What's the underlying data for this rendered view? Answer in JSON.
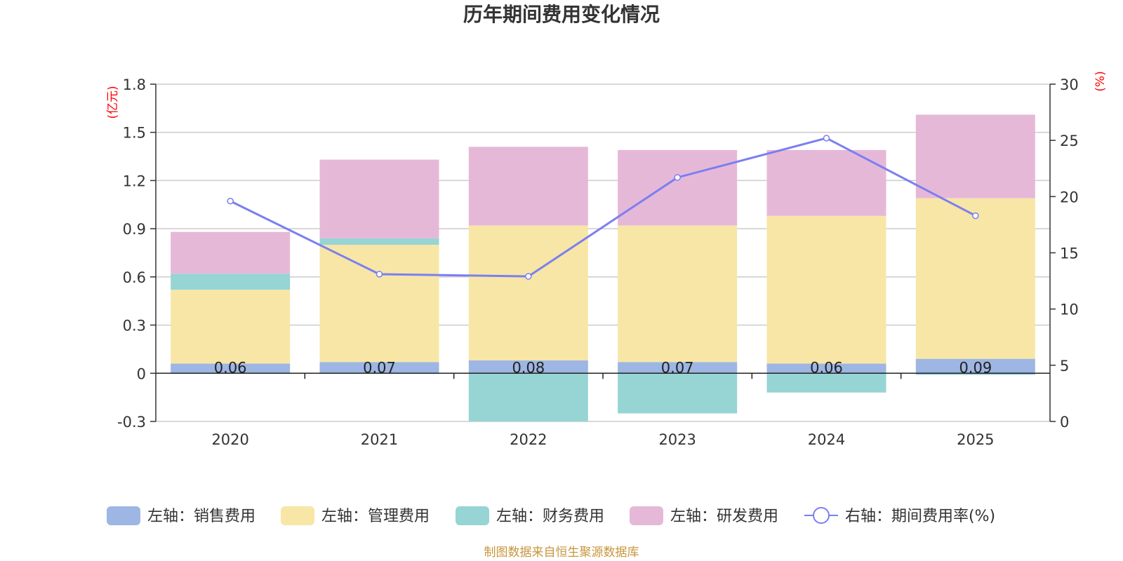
{
  "chart_data": {
    "type": "bar",
    "title": "历年期间费用变化情况",
    "categories": [
      "2020",
      "2021",
      "2022",
      "2023",
      "2024",
      "2025"
    ],
    "left_axis": {
      "unit_label": "(亿元)",
      "ylim": [
        -0.3,
        1.8
      ],
      "ticks": [
        "1.8",
        "1.5",
        "1.2",
        "0.9",
        "0.6",
        "0.3",
        "0",
        "-0.3"
      ],
      "tick_values": [
        1.8,
        1.5,
        1.2,
        0.9,
        0.6,
        0.3,
        0,
        -0.3
      ]
    },
    "right_axis": {
      "unit_label": "(%)",
      "ylim": [
        0,
        30
      ],
      "ticks": [
        "30",
        "25",
        "20",
        "15",
        "10",
        "5",
        "0"
      ],
      "tick_values": [
        30,
        25,
        20,
        15,
        10,
        5,
        0
      ]
    },
    "series": [
      {
        "name": "左轴：销售费用",
        "type": "bar",
        "axis": "left",
        "color": "#9db6e3",
        "values": [
          0.06,
          0.07,
          0.08,
          0.07,
          0.06,
          0.09
        ],
        "labels": [
          "0.06",
          "0.07",
          "0.08",
          "0.07",
          "0.06",
          "0.09"
        ]
      },
      {
        "name": "左轴：管理费用",
        "type": "bar",
        "axis": "left",
        "color": "#f7e6a6",
        "values": [
          0.46,
          0.73,
          0.84,
          0.85,
          0.92,
          1.0
        ]
      },
      {
        "name": "左轴：财务费用",
        "type": "bar",
        "axis": "left",
        "color": "#97d4d4",
        "values": [
          0.1,
          0.04,
          -0.3,
          -0.25,
          -0.12,
          -0.01
        ]
      },
      {
        "name": "左轴：研发费用",
        "type": "bar",
        "axis": "left",
        "color": "#e6b8d8",
        "values": [
          0.26,
          0.49,
          0.49,
          0.47,
          0.41,
          0.52
        ]
      },
      {
        "name": "右轴：期间费用率(%)",
        "type": "line",
        "axis": "right",
        "color": "#7b7ff0",
        "values": [
          19.6,
          13.1,
          12.9,
          21.7,
          25.2,
          18.3
        ]
      }
    ],
    "source_note": "制图数据来自恒生聚源数据库"
  }
}
